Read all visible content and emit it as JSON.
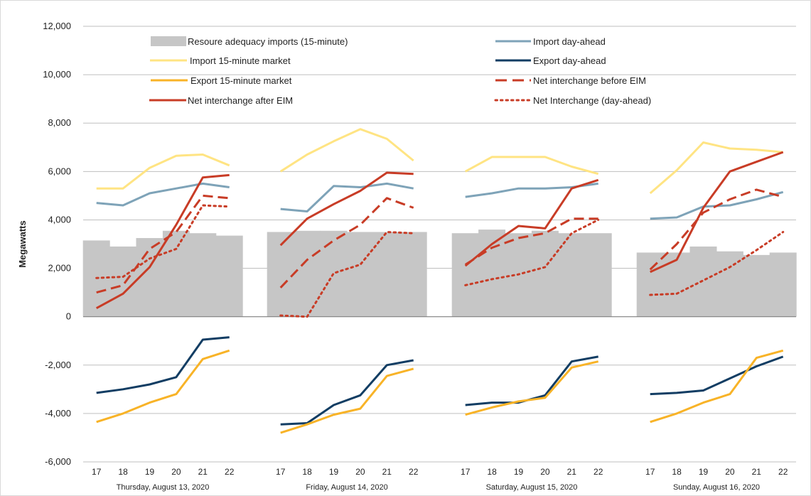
{
  "chart_data": {
    "type": "line",
    "ylabel": "Megawatts",
    "ylim": [
      -6000,
      12000
    ],
    "yticks": [
      -6000,
      -4000,
      -2000,
      0,
      2000,
      4000,
      6000,
      8000,
      10000,
      12000
    ],
    "ytick_labels": [
      "-6,000",
      "-4,000",
      "-2,000",
      "0",
      "2,000",
      "4,000",
      "6,000",
      "8,000",
      "10,000",
      "12,000"
    ],
    "grid": true,
    "legend_position": "top",
    "hours": [
      "17",
      "18",
      "19",
      "20",
      "21",
      "22"
    ],
    "days": [
      {
        "label": "Thursday, August 13, 2020",
        "ra_imports": [
          3150,
          2900,
          3250,
          3550,
          3450,
          3350
        ],
        "import_da": [
          4700,
          4600,
          5100,
          5300,
          5500,
          5350
        ],
        "import_15": [
          5300,
          5300,
          6150,
          6650,
          6700,
          6250
        ],
        "export_da": [
          -3150,
          -3000,
          -2800,
          -2500,
          -950,
          -850
        ],
        "export_15": [
          -4350,
          -4000,
          -3550,
          -3200,
          -1750,
          -1400
        ],
        "net_before": [
          1000,
          1300,
          2800,
          3500,
          5000,
          4900
        ],
        "net_after": [
          350,
          950,
          2050,
          3800,
          5750,
          5850
        ],
        "net_da": [
          1600,
          1650,
          2400,
          2800,
          4600,
          4550
        ]
      },
      {
        "label": "Friday, August 14, 2020",
        "ra_imports": [
          3500,
          3550,
          3550,
          3500,
          3500,
          3500
        ],
        "import_da": [
          4450,
          4350,
          5400,
          5350,
          5500,
          5300
        ],
        "import_15": [
          6000,
          6700,
          7250,
          7750,
          7350,
          6450
        ],
        "export_da": [
          -4450,
          -4400,
          -3650,
          -3250,
          -2000,
          -1800
        ],
        "export_15": [
          -4800,
          -4450,
          -4050,
          -3800,
          -2450,
          -2150
        ],
        "net_before": [
          1200,
          2350,
          3150,
          3800,
          4900,
          4500
        ],
        "net_after": [
          2950,
          4050,
          4650,
          5200,
          5950,
          5900
        ],
        "net_da": [
          50,
          0,
          1800,
          2150,
          3500,
          3450
        ]
      },
      {
        "label": "Saturday, August 15, 2020",
        "ra_imports": [
          3450,
          3600,
          3450,
          3550,
          3450,
          3450
        ],
        "import_da": [
          4950,
          5100,
          5300,
          5300,
          5350,
          5500
        ],
        "import_15": [
          6000,
          6600,
          6600,
          6600,
          6200,
          5900
        ],
        "export_da": [
          -3650,
          -3550,
          -3550,
          -3250,
          -1850,
          -1650
        ],
        "export_15": [
          -4050,
          -3750,
          -3500,
          -3350,
          -2100,
          -1850
        ],
        "net_before": [
          2150,
          2850,
          3250,
          3450,
          4050,
          4050
        ],
        "net_after": [
          2100,
          3000,
          3750,
          3650,
          5300,
          5650
        ],
        "net_da": [
          1300,
          1550,
          1750,
          2050,
          3450,
          4000
        ]
      },
      {
        "label": "Sunday, August 16, 2020",
        "ra_imports": [
          2650,
          2650,
          2900,
          2700,
          2550,
          2650
        ],
        "import_da": [
          4050,
          4100,
          4550,
          4600,
          4850,
          5150
        ],
        "import_15": [
          5100,
          6050,
          7200,
          6950,
          6900,
          6800
        ],
        "export_da": [
          -3200,
          -3150,
          -3050,
          -2550,
          -2050,
          -1650
        ],
        "export_15": [
          -4350,
          -4000,
          -3550,
          -3200,
          -1700,
          -1400
        ],
        "net_before": [
          1950,
          3000,
          4300,
          4850,
          5250,
          4950
        ],
        "net_after": [
          1850,
          2350,
          4500,
          6000,
          6400,
          6800
        ],
        "net_da": [
          900,
          950,
          1500,
          2050,
          2750,
          3500
        ]
      }
    ],
    "series": [
      {
        "key": "ra_imports",
        "name": "Resoure adequacy imports (15-minute)",
        "color": "#c6c6c6",
        "style": "bar"
      },
      {
        "key": "import_da",
        "name": "Import day-ahead",
        "color": "#7ea3b8",
        "style": "solid"
      },
      {
        "key": "import_15",
        "name": "Import 15-minute market",
        "color": "#ffe483",
        "style": "solid"
      },
      {
        "key": "export_da",
        "name": "Export day-ahead",
        "color": "#123d63",
        "style": "solid"
      },
      {
        "key": "export_15",
        "name": "Export 15-minute market",
        "color": "#f8b327",
        "style": "solid"
      },
      {
        "key": "net_before",
        "name": "Net interchange before EIM",
        "color": "#c83c26",
        "style": "dashed"
      },
      {
        "key": "net_after",
        "name": "Net interchange after EIM",
        "color": "#c83c26",
        "style": "solid"
      },
      {
        "key": "net_da",
        "name": "Net Interchange (day-ahead)",
        "color": "#c83c26",
        "style": "dotted"
      }
    ]
  }
}
